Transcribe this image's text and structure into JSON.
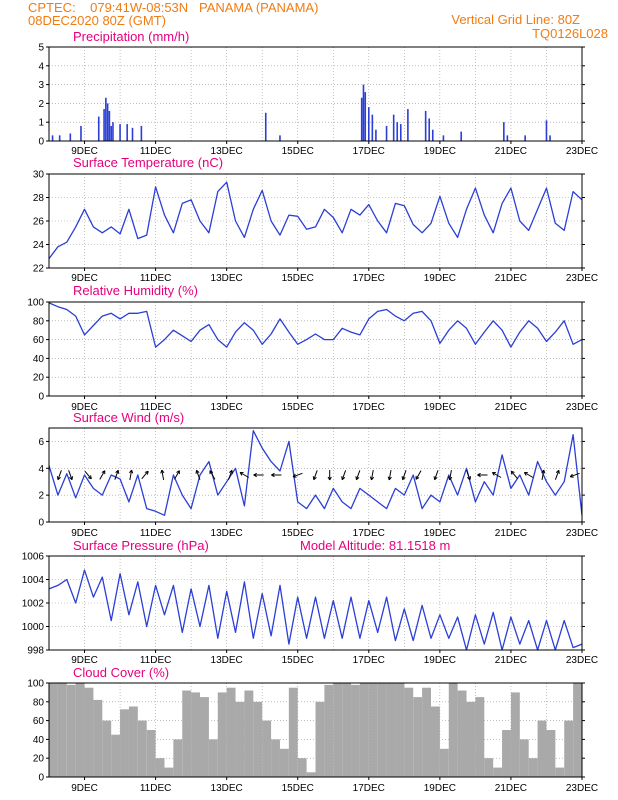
{
  "header": {
    "line1_left": "CPTEC:    079:41W-08:53N   PANAMA (PANAMA)",
    "line2_left": "08DEC2020 80Z (GMT)",
    "line1_right": "Vertical Grid Line: 80Z",
    "line2_right": "TQ0126L028"
  },
  "colors": {
    "header": "#f07c14",
    "panel_title": "#e6007e",
    "series": "#2b3fd6",
    "cloud": "#a9a9a9",
    "arrow": "#000000"
  },
  "x_axis": {
    "tick_labels": [
      "9DEC",
      "11DEC",
      "13DEC",
      "15DEC",
      "17DEC",
      "19DEC",
      "21DEC",
      "23DEC"
    ],
    "day_start": 8,
    "day_end": 23
  },
  "chart_data": [
    {
      "id": "precip",
      "type": "bar",
      "title": "Precipitation (mm/h)",
      "ylabel": "mm/h",
      "ylim": [
        0,
        5
      ],
      "yticks": [
        0,
        1,
        2,
        3,
        4,
        5
      ],
      "grid": true,
      "x_days": [
        8.1,
        8.3,
        8.6,
        8.9,
        9.4,
        9.55,
        9.6,
        9.65,
        9.7,
        9.75,
        9.8,
        10.0,
        10.2,
        10.35,
        10.6,
        14.1,
        14.5,
        16.8,
        16.85,
        16.9,
        17.0,
        17.1,
        17.2,
        17.5,
        17.7,
        17.8,
        17.9,
        18.1,
        18.6,
        18.7,
        18.8,
        19.1,
        19.6,
        20.8,
        20.9,
        21.4,
        22.0,
        22.1
      ],
      "values": [
        0.3,
        0.3,
        0.4,
        0.8,
        1.3,
        1.7,
        2.3,
        2.0,
        1.6,
        0.8,
        1.0,
        0.9,
        0.9,
        0.7,
        0.8,
        1.5,
        0.3,
        2.3,
        3.0,
        2.6,
        1.8,
        1.4,
        0.6,
        0.8,
        1.4,
        1.0,
        0.9,
        1.7,
        1.6,
        1.2,
        0.6,
        0.3,
        0.5,
        1.0,
        0.3,
        0.3,
        1.1,
        0.3
      ]
    },
    {
      "id": "temp",
      "type": "line",
      "title": "Surface Temperature (nC)",
      "ylabel": "nC",
      "ylim": [
        22,
        30
      ],
      "yticks": [
        22,
        24,
        26,
        28,
        30
      ],
      "grid": true,
      "x_days": [
        8.0,
        8.25,
        8.5,
        8.75,
        9.0,
        9.25,
        9.5,
        9.75,
        10.0,
        10.25,
        10.5,
        10.75,
        11.0,
        11.25,
        11.5,
        11.75,
        12.0,
        12.25,
        12.5,
        12.75,
        13.0,
        13.25,
        13.5,
        13.75,
        14.0,
        14.25,
        14.5,
        14.75,
        15.0,
        15.25,
        15.5,
        15.75,
        16.0,
        16.25,
        16.5,
        16.75,
        17.0,
        17.25,
        17.5,
        17.75,
        18.0,
        18.25,
        18.5,
        18.75,
        19.0,
        19.25,
        19.5,
        19.75,
        20.0,
        20.25,
        20.5,
        20.75,
        21.0,
        21.25,
        21.5,
        21.75,
        22.0,
        22.25,
        22.5,
        22.75,
        23.0
      ],
      "values": [
        22.8,
        23.8,
        24.2,
        25.5,
        27.0,
        25.5,
        25.0,
        25.5,
        24.9,
        27.0,
        24.5,
        24.8,
        28.9,
        26.5,
        25.0,
        27.5,
        27.8,
        26.0,
        25.0,
        28.5,
        29.3,
        26.0,
        24.6,
        27.0,
        28.6,
        26.0,
        24.8,
        26.5,
        26.4,
        25.3,
        25.5,
        27.0,
        26.3,
        25.0,
        27.0,
        26.5,
        27.4,
        26.0,
        25.0,
        27.5,
        27.3,
        25.7,
        25.0,
        25.8,
        28.1,
        25.8,
        24.6,
        27.0,
        28.8,
        26.5,
        25.0,
        27.5,
        28.8,
        26.0,
        25.2,
        27.0,
        28.8,
        25.8,
        25.2,
        28.5,
        27.8
      ]
    },
    {
      "id": "rh",
      "type": "line",
      "title": "Relative Humidity (%)",
      "ylabel": "%",
      "ylim": [
        0,
        100
      ],
      "yticks": [
        0,
        20,
        40,
        60,
        80,
        100
      ],
      "grid": true,
      "x_days": [
        8.0,
        8.25,
        8.5,
        8.75,
        9.0,
        9.25,
        9.5,
        9.75,
        10.0,
        10.25,
        10.5,
        10.75,
        11.0,
        11.25,
        11.5,
        11.75,
        12.0,
        12.25,
        12.5,
        12.75,
        13.0,
        13.25,
        13.5,
        13.75,
        14.0,
        14.25,
        14.5,
        14.75,
        15.0,
        15.25,
        15.5,
        15.75,
        16.0,
        16.25,
        16.5,
        16.75,
        17.0,
        17.25,
        17.5,
        17.75,
        18.0,
        18.25,
        18.5,
        18.75,
        19.0,
        19.25,
        19.5,
        19.75,
        20.0,
        20.25,
        20.5,
        20.75,
        21.0,
        21.25,
        21.5,
        21.75,
        22.0,
        22.25,
        22.5,
        22.75,
        23.0
      ],
      "values": [
        99,
        95,
        92,
        85,
        65,
        75,
        85,
        88,
        82,
        88,
        88,
        90,
        52,
        60,
        70,
        64,
        58,
        70,
        76,
        60,
        52,
        68,
        78,
        70,
        55,
        66,
        82,
        68,
        55,
        60,
        66,
        60,
        60,
        72,
        68,
        65,
        82,
        90,
        92,
        85,
        80,
        88,
        90,
        80,
        56,
        70,
        80,
        72,
        55,
        68,
        80,
        70,
        52,
        68,
        80,
        72,
        58,
        68,
        80,
        55,
        60
      ]
    },
    {
      "id": "wind",
      "type": "line",
      "title": "Surface Wind (m/s)",
      "ylabel": "m/s",
      "ylim": [
        0,
        7
      ],
      "yticks": [
        0,
        2,
        4,
        6
      ],
      "grid": true,
      "x_days": [
        8.0,
        8.25,
        8.5,
        8.75,
        9.0,
        9.25,
        9.5,
        9.75,
        10.0,
        10.25,
        10.5,
        10.75,
        11.0,
        11.25,
        11.5,
        11.75,
        12.0,
        12.25,
        12.5,
        12.75,
        13.0,
        13.25,
        13.5,
        13.75,
        14.0,
        14.25,
        14.5,
        14.75,
        15.0,
        15.25,
        15.5,
        15.75,
        16.0,
        16.25,
        16.5,
        16.75,
        17.0,
        17.25,
        17.5,
        17.75,
        18.0,
        18.25,
        18.5,
        18.75,
        19.0,
        19.25,
        19.5,
        19.75,
        20.0,
        20.25,
        20.5,
        20.75,
        21.0,
        21.25,
        21.5,
        21.75,
        22.0,
        22.25,
        22.5,
        22.75,
        23.0
      ],
      "values": [
        4.2,
        2.0,
        3.6,
        1.8,
        3.5,
        2.5,
        2.0,
        3.5,
        3.2,
        1.5,
        3.5,
        1.0,
        0.8,
        0.5,
        3.5,
        2.0,
        1.0,
        3.5,
        4.5,
        2.0,
        3.0,
        4.0,
        1.2,
        6.8,
        5.5,
        4.5,
        3.8,
        6.0,
        1.5,
        1.0,
        2.0,
        1.0,
        2.5,
        1.5,
        1.0,
        2.5,
        2.0,
        1.5,
        1.0,
        2.5,
        2.0,
        3.5,
        1.0,
        2.0,
        1.5,
        3.5,
        2.0,
        4.0,
        1.5,
        3.0,
        2.0,
        5.0,
        2.5,
        3.5,
        2.0,
        4.5,
        3.0,
        2.0,
        3.0,
        6.5,
        0.5
      ],
      "arrows": {
        "level": 3.5,
        "x_days": [
          8.3,
          8.6,
          9.1,
          9.5,
          9.9,
          10.3,
          10.7,
          11.2,
          11.6,
          12.2,
          12.6,
          13.1,
          13.5,
          13.9,
          14.4,
          15.0,
          15.5,
          15.9,
          16.3,
          16.7,
          17.1,
          17.6,
          18.0,
          18.4,
          18.9,
          19.3,
          19.8,
          20.2,
          20.6,
          21.1,
          21.5,
          21.9,
          22.3,
          22.8
        ],
        "dir_deg": [
          200,
          160,
          140,
          30,
          20,
          10,
          40,
          350,
          30,
          340,
          330,
          20,
          300,
          270,
          270,
          250,
          200,
          180,
          200,
          200,
          190,
          190,
          200,
          210,
          200,
          190,
          160,
          270,
          300,
          320,
          300,
          10,
          20,
          250
        ]
      }
    },
    {
      "id": "pressure",
      "type": "line",
      "title": "Surface Pressure (hPa)",
      "ylabel": "hPa",
      "ylim": [
        998,
        1006
      ],
      "yticks": [
        998,
        1000,
        1002,
        1004,
        1006
      ],
      "grid": true,
      "annotation": "Model Altitude: 81.1518 m",
      "x_days": [
        8.0,
        8.25,
        8.5,
        8.75,
        9.0,
        9.25,
        9.5,
        9.75,
        10.0,
        10.25,
        10.5,
        10.75,
        11.0,
        11.25,
        11.5,
        11.75,
        12.0,
        12.25,
        12.5,
        12.75,
        13.0,
        13.25,
        13.5,
        13.75,
        14.0,
        14.25,
        14.5,
        14.75,
        15.0,
        15.25,
        15.5,
        15.75,
        16.0,
        16.25,
        16.5,
        16.75,
        17.0,
        17.25,
        17.5,
        17.75,
        18.0,
        18.25,
        18.5,
        18.75,
        19.0,
        19.25,
        19.5,
        19.75,
        20.0,
        20.25,
        20.5,
        20.75,
        21.0,
        21.25,
        21.5,
        21.75,
        22.0,
        22.25,
        22.5,
        22.75,
        23.0
      ],
      "values": [
        1003.2,
        1003.5,
        1004.0,
        1002.0,
        1004.8,
        1002.5,
        1004.2,
        1000.5,
        1004.5,
        1001.0,
        1003.8,
        1000.0,
        1003.5,
        1001.0,
        1003.5,
        999.5,
        1003.2,
        1000.0,
        1003.5,
        999.0,
        1003.0,
        999.5,
        1003.8,
        999.0,
        1002.8,
        999.2,
        1003.5,
        998.5,
        1002.5,
        999.0,
        1002.5,
        999.0,
        1002.2,
        999.0,
        1002.5,
        999.0,
        1002.2,
        999.5,
        1002.5,
        998.8,
        1001.5,
        998.8,
        1001.8,
        999.0,
        1001.0,
        999.0,
        1000.8,
        998.0,
        1001.0,
        998.5,
        1001.2,
        998.0,
        1000.8,
        998.5,
        1000.5,
        998.0,
        1000.5,
        998.0,
        1000.5,
        998.2,
        998.5
      ]
    },
    {
      "id": "cloud",
      "type": "area",
      "title": "Cloud Cover (%)",
      "ylabel": "%",
      "ylim": [
        0,
        100
      ],
      "yticks": [
        0,
        20,
        40,
        60,
        80,
        100
      ],
      "grid": true,
      "x_days": [
        8.0,
        8.25,
        8.5,
        8.75,
        9.0,
        9.25,
        9.5,
        9.75,
        10.0,
        10.25,
        10.5,
        10.75,
        11.0,
        11.25,
        11.5,
        11.75,
        12.0,
        12.25,
        12.5,
        12.75,
        13.0,
        13.25,
        13.5,
        13.75,
        14.0,
        14.25,
        14.5,
        14.75,
        15.0,
        15.25,
        15.5,
        15.75,
        16.0,
        16.25,
        16.5,
        16.75,
        17.0,
        17.25,
        17.5,
        17.75,
        18.0,
        18.25,
        18.5,
        18.75,
        19.0,
        19.25,
        19.5,
        19.75,
        20.0,
        20.25,
        20.5,
        20.75,
        21.0,
        21.25,
        21.5,
        21.75,
        22.0,
        22.25,
        22.5,
        22.75,
        23.0
      ],
      "values": [
        100,
        100,
        98,
        100,
        95,
        82,
        60,
        45,
        72,
        75,
        60,
        50,
        20,
        10,
        40,
        92,
        90,
        85,
        40,
        90,
        95,
        80,
        92,
        80,
        60,
        40,
        30,
        95,
        20,
        5,
        80,
        98,
        100,
        100,
        98,
        100,
        100,
        100,
        100,
        100,
        95,
        85,
        95,
        75,
        30,
        100,
        92,
        80,
        85,
        20,
        10,
        50,
        90,
        40,
        20,
        60,
        50,
        10,
        60,
        100,
        20
      ]
    }
  ]
}
